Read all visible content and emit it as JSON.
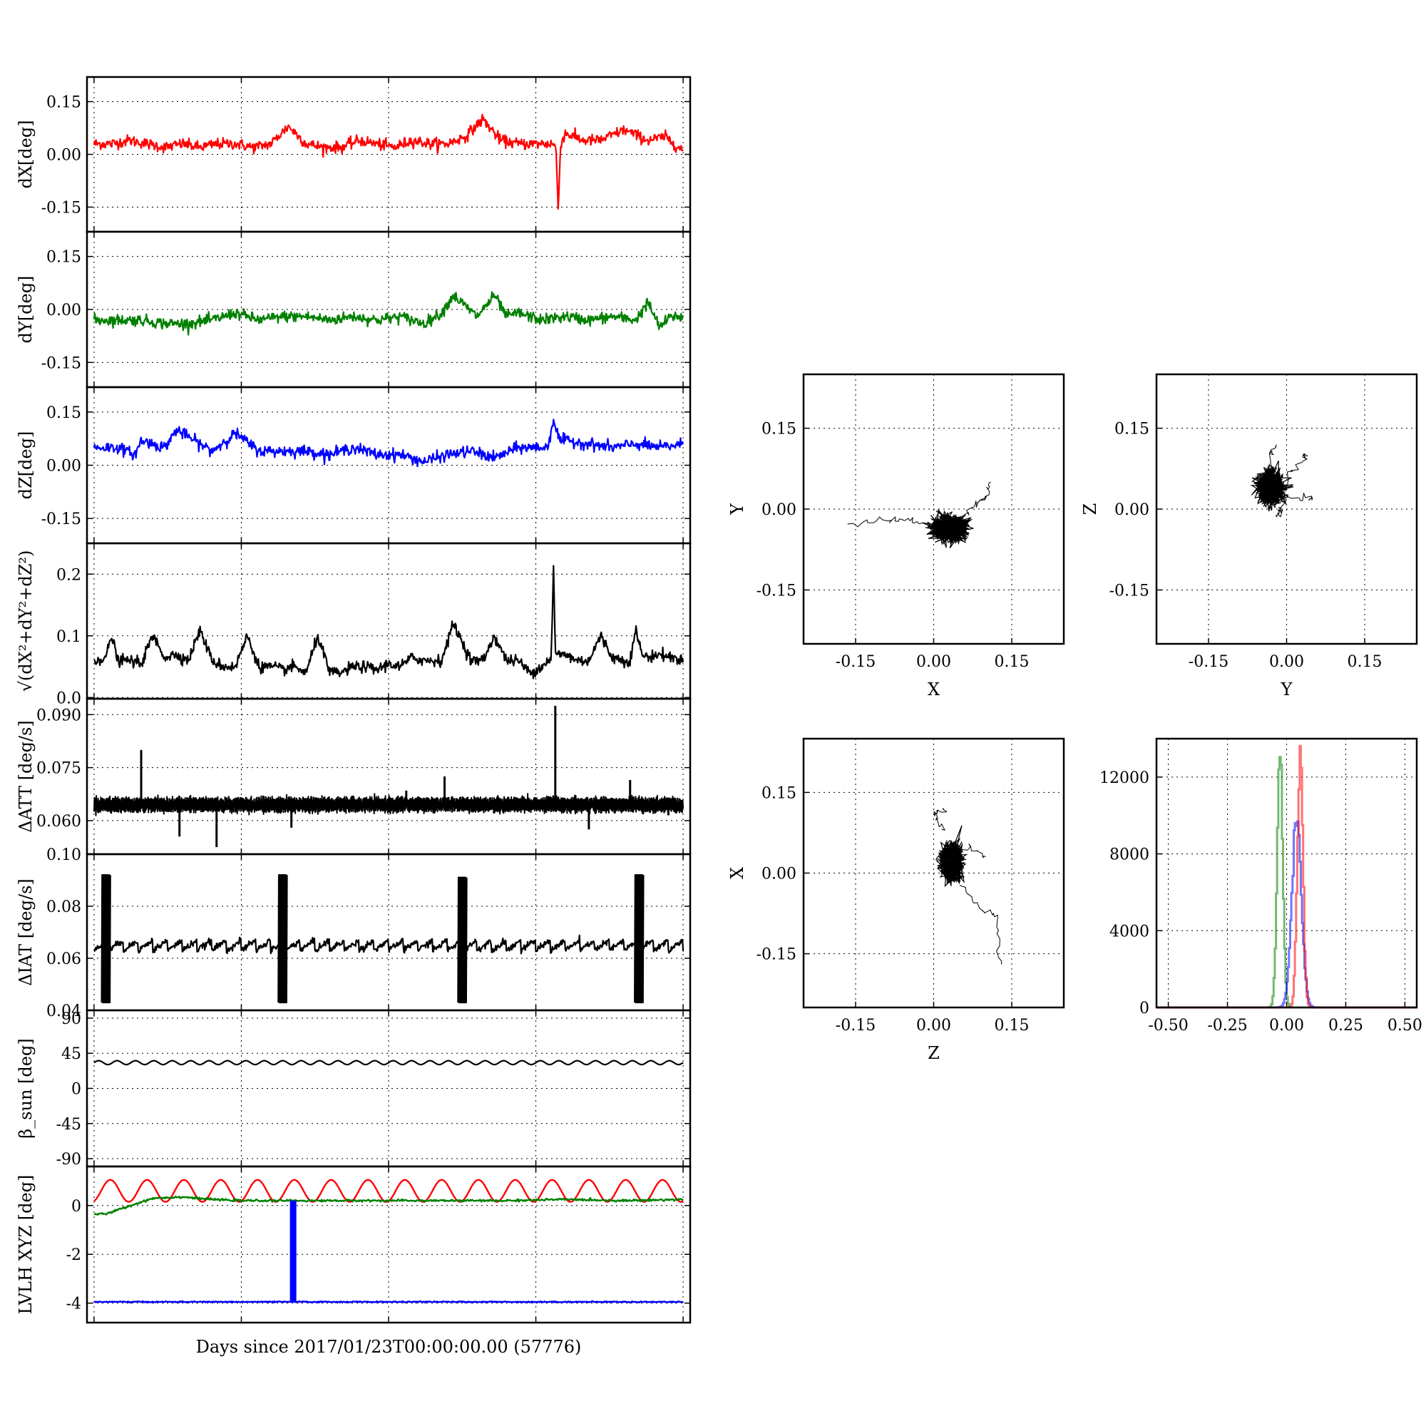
{
  "colors": {
    "red": "#ff0000",
    "green": "#008000",
    "blue": "#0000ff",
    "black": "#000000"
  },
  "xlabel": "Days since 2017/01/23T00:00:00.00 (57776)",
  "chart_data": [
    {
      "type": "line",
      "panel": "dX",
      "ylabel": "dX[deg]",
      "ylim": [
        -0.22,
        0.22
      ],
      "yticks": [
        "0.15",
        "0.00",
        "-0.15"
      ],
      "ytick_values": [
        0.15,
        0.0,
        -0.15
      ],
      "series": [
        {
          "color": "red",
          "x": [
            0,
            3,
            6,
            9,
            12,
            15,
            18,
            21,
            24,
            27,
            30,
            33,
            36,
            39,
            42,
            45,
            48,
            51,
            54,
            57,
            60,
            63,
            66,
            69,
            72,
            75,
            78,
            78.4,
            78.8,
            79.2,
            80,
            83,
            86,
            90,
            94,
            97,
            100
          ],
          "values": [
            0.03,
            0.03,
            0.04,
            0.03,
            0.02,
            0.03,
            0.02,
            0.03,
            0.03,
            0.02,
            0.03,
            0.08,
            0.03,
            0.02,
            0.02,
            0.04,
            0.03,
            0.02,
            0.04,
            0.03,
            0.03,
            0.05,
            0.1,
            0.04,
            0.03,
            0.03,
            0.03,
            0.02,
            -0.16,
            0.03,
            0.06,
            0.04,
            0.04,
            0.07,
            0.04,
            0.05,
            0.01
          ]
        }
      ]
    },
    {
      "type": "line",
      "panel": "dY",
      "ylabel": "dY[deg]",
      "ylim": [
        -0.22,
        0.22
      ],
      "yticks": [
        "0.15",
        "0.00",
        "-0.15"
      ],
      "ytick_values": [
        0.15,
        0.0,
        -0.15
      ],
      "series": [
        {
          "color": "green",
          "x": [
            0,
            4,
            8,
            12,
            16,
            20,
            24,
            28,
            32,
            36,
            40,
            44,
            48,
            52,
            56,
            59,
            61,
            65,
            68,
            70,
            72,
            76,
            80,
            84,
            88,
            92,
            94,
            96,
            98,
            100
          ],
          "values": [
            -0.03,
            -0.03,
            -0.03,
            -0.04,
            -0.04,
            -0.03,
            -0.01,
            -0.03,
            -0.02,
            -0.02,
            -0.03,
            -0.02,
            -0.03,
            -0.02,
            -0.04,
            -0.01,
            0.04,
            -0.02,
            0.04,
            -0.02,
            -0.01,
            -0.03,
            -0.02,
            -0.03,
            -0.02,
            -0.03,
            0.02,
            -0.05,
            -0.02,
            -0.02
          ]
        }
      ]
    },
    {
      "type": "line",
      "panel": "dZ",
      "ylabel": "dZ[deg]",
      "ylim": [
        -0.22,
        0.22
      ],
      "yticks": [
        "0.15",
        "0.00",
        "-0.15"
      ],
      "ytick_values": [
        0.15,
        0.0,
        -0.15
      ],
      "series": [
        {
          "color": "blue",
          "x": [
            0,
            4,
            7,
            8,
            12,
            14,
            18,
            20,
            24,
            28,
            32,
            36,
            40,
            44,
            48,
            52,
            56,
            60,
            64,
            68,
            72,
            76,
            77,
            78,
            79,
            80,
            84,
            88,
            92,
            96,
            100
          ],
          "values": [
            0.05,
            0.05,
            0.03,
            0.07,
            0.05,
            0.1,
            0.06,
            0.04,
            0.09,
            0.04,
            0.04,
            0.04,
            0.03,
            0.05,
            0.03,
            0.03,
            0.01,
            0.03,
            0.04,
            0.02,
            0.05,
            0.05,
            0.05,
            0.13,
            0.07,
            0.07,
            0.06,
            0.05,
            0.06,
            0.05,
            0.06
          ]
        }
      ]
    },
    {
      "type": "line",
      "panel": "norm",
      "ylabel": "√(dX²+dY²+dZ²)",
      "ylim": [
        -0.002,
        0.25
      ],
      "yticks": [
        "0.2",
        "0.1",
        "0.0"
      ],
      "ytick_values": [
        0.2,
        0.1,
        0.0
      ],
      "series": [
        {
          "color": "black",
          "x": [
            0,
            2,
            3,
            4,
            6,
            8,
            10,
            12,
            14,
            16,
            18,
            20,
            22,
            24,
            26,
            28,
            30,
            32,
            34,
            36,
            38,
            40,
            42,
            44,
            46,
            48,
            50,
            52,
            54,
            56,
            58,
            59,
            61,
            64,
            66,
            68,
            70,
            72,
            74,
            76,
            77,
            77.6,
            78,
            78.3,
            80,
            82,
            84,
            86,
            88,
            90,
            91,
            92,
            93,
            94,
            96,
            98,
            100
          ],
          "values": [
            0.06,
            0.065,
            0.1,
            0.06,
            0.06,
            0.055,
            0.1,
            0.065,
            0.07,
            0.06,
            0.11,
            0.06,
            0.05,
            0.05,
            0.1,
            0.05,
            0.05,
            0.045,
            0.05,
            0.04,
            0.1,
            0.04,
            0.04,
            0.05,
            0.05,
            0.045,
            0.055,
            0.05,
            0.065,
            0.06,
            0.06,
            0.06,
            0.12,
            0.06,
            0.06,
            0.1,
            0.06,
            0.06,
            0.04,
            0.05,
            0.06,
            0.06,
            0.215,
            0.07,
            0.07,
            0.06,
            0.06,
            0.1,
            0.065,
            0.06,
            0.06,
            0.11,
            0.07,
            0.065,
            0.07,
            0.065,
            0.06
          ]
        }
      ]
    },
    {
      "type": "line",
      "panel": "dATT",
      "ylabel": "ΔATT [deg/s]",
      "ylim": [
        0.0505,
        0.0945
      ],
      "yticks": [
        "0.090",
        "0.075",
        "0.060"
      ],
      "ytick_values": [
        0.09,
        0.075,
        0.06
      ],
      "baseline": 0.0645,
      "spikes": [
        {
          "x": 8,
          "y": 0.08
        },
        {
          "x": 14.5,
          "y": 0.0555
        },
        {
          "x": 20.8,
          "y": 0.0525
        },
        {
          "x": 33.5,
          "y": 0.058
        },
        {
          "x": 53,
          "y": 0.0685
        },
        {
          "x": 59.5,
          "y": 0.0725
        },
        {
          "x": 78.3,
          "y": 0.0925
        },
        {
          "x": 84,
          "y": 0.0575
        },
        {
          "x": 91,
          "y": 0.0715
        },
        {
          "x": 97.5,
          "y": 0.0615
        }
      ]
    },
    {
      "type": "line",
      "panel": "dIAT",
      "ylabel": "ΔIAT [deg/s]",
      "ylim": [
        0.04,
        0.1
      ],
      "yticks": [
        "0.10",
        "0.08",
        "0.06",
        "0.04"
      ],
      "ytick_values": [
        0.1,
        0.08,
        0.06,
        0.04
      ],
      "sawtooth": {
        "low": 0.063,
        "high": 0.067,
        "period": 2.5
      },
      "bursts": [
        {
          "x": 2,
          "low": 0.043,
          "high": 0.092
        },
        {
          "x": 32,
          "low": 0.043,
          "high": 0.092
        },
        {
          "x": 62.5,
          "low": 0.043,
          "high": 0.091
        },
        {
          "x": 92.5,
          "low": 0.043,
          "high": 0.092
        }
      ]
    },
    {
      "type": "line",
      "panel": "beta",
      "ylabel": "β_sun [deg]",
      "ylim": [
        -100,
        100
      ],
      "yticks": [
        "90",
        "45",
        "0",
        "-45",
        "-90"
      ],
      "ytick_values": [
        90,
        45,
        0,
        -45,
        -90
      ],
      "series": [
        {
          "color": "black",
          "mean": 33,
          "amplitude": 2.5,
          "cycles": 32
        }
      ]
    },
    {
      "type": "line",
      "panel": "lvlh",
      "ylabel": "LVLH XYZ [deg]",
      "ylim": [
        -4.8,
        1.6
      ],
      "yticks": [
        "0",
        "-2",
        "-4"
      ],
      "ytick_values": [
        0,
        -2,
        -4
      ],
      "series": [
        {
          "color": "red",
          "mean": 0.6,
          "amplitude": 0.45,
          "cycles": 16
        },
        {
          "color": "green",
          "x": [
            0,
            2,
            5,
            10,
            15,
            20,
            25,
            30,
            40,
            50,
            60,
            70,
            80,
            90,
            100
          ],
          "values": [
            -0.35,
            -0.35,
            -0.1,
            0.3,
            0.35,
            0.25,
            0.2,
            0.2,
            0.2,
            0.2,
            0.2,
            0.2,
            0.25,
            0.2,
            0.25
          ]
        },
        {
          "color": "blue",
          "mean": -3.95
        }
      ],
      "bar": {
        "color": "blue",
        "x": 33.8,
        "from": 0.2,
        "to": -3.95
      }
    },
    {
      "type": "scatter",
      "panel": "XY",
      "xlabel": "X",
      "ylabel": "Y",
      "xlim": [
        -0.25,
        0.25
      ],
      "ylim": [
        -0.25,
        0.25
      ],
      "ticks": [
        "-0.15",
        "0.00",
        "0.15"
      ],
      "tick_values": [
        -0.15,
        0.0,
        0.15
      ],
      "cloud": {
        "cx": 0.03,
        "cy": -0.035,
        "sx": 0.017,
        "sy": 0.011,
        "n": 900
      },
      "trails": [
        [
          [
            0.05,
            -0.02
          ],
          [
            0.08,
            0.01
          ],
          [
            0.1,
            0.02
          ],
          [
            0.11,
            0.05
          ]
        ],
        [
          [
            -0.16,
            -0.03
          ],
          [
            -0.09,
            -0.02
          ],
          [
            -0.05,
            -0.02
          ],
          [
            0.0,
            -0.03
          ]
        ]
      ]
    },
    {
      "type": "scatter",
      "panel": "YZ",
      "xlabel": "Y",
      "ylabel": "Z",
      "xlim": [
        -0.25,
        0.25
      ],
      "ylim": [
        -0.25,
        0.25
      ],
      "ticks": [
        "-0.15",
        "0.00",
        "0.15"
      ],
      "tick_values": [
        -0.15,
        0.0,
        0.15
      ],
      "cloud": {
        "cx": -0.03,
        "cy": 0.04,
        "sx": 0.012,
        "sy": 0.015,
        "n": 900
      },
      "trails": [
        [
          [
            -0.02,
            0.05
          ],
          [
            -0.03,
            0.1
          ],
          [
            -0.02,
            0.12
          ]
        ],
        [
          [
            -0.01,
            0.04
          ],
          [
            0.03,
            0.09
          ],
          [
            0.04,
            0.1
          ]
        ],
        [
          [
            -0.01,
            0.02
          ],
          [
            0.04,
            0.02
          ],
          [
            0.05,
            0.02
          ]
        ],
        [
          [
            -0.01,
            0.02
          ],
          [
            -0.01,
            0.0
          ],
          [
            -0.02,
            -0.01
          ]
        ]
      ]
    },
    {
      "type": "scatter",
      "panel": "ZX",
      "xlabel": "Z",
      "ylabel": "X",
      "xlim": [
        -0.25,
        0.25
      ],
      "ylim": [
        -0.25,
        0.25
      ],
      "ticks": [
        "-0.15",
        "0.00",
        "0.15"
      ],
      "tick_values": [
        -0.15,
        0.0,
        0.15
      ],
      "cloud": {
        "cx": 0.035,
        "cy": 0.02,
        "sx": 0.01,
        "sy": 0.016,
        "n": 900
      },
      "trails": [
        [
          [
            0.04,
            0.03
          ],
          [
            0.07,
            0.05
          ],
          [
            0.1,
            0.03
          ]
        ],
        [
          [
            0.02,
            0.08
          ],
          [
            0.0,
            0.11
          ],
          [
            0.02,
            0.12
          ]
        ],
        [
          [
            0.05,
            -0.02
          ],
          [
            0.09,
            -0.07
          ],
          [
            0.12,
            -0.08
          ],
          [
            0.13,
            -0.17
          ]
        ]
      ]
    },
    {
      "type": "area",
      "panel": "hist",
      "xlim": [
        -0.55,
        0.55
      ],
      "ylim": [
        0,
        14000
      ],
      "xticks": [
        "-0.50",
        "-0.25",
        "0.00",
        "0.25",
        "0.50"
      ],
      "xtick_values": [
        -0.5,
        -0.25,
        0.0,
        0.25,
        0.5
      ],
      "yticks": [
        "12000",
        "8000",
        "4000",
        "0"
      ],
      "ytick_values": [
        12000,
        8000,
        4000,
        0
      ],
      "series": [
        {
          "color": "green",
          "center": -0.03,
          "sigma": 0.012,
          "peak": 12800
        },
        {
          "color": "blue",
          "center": 0.04,
          "sigma": 0.02,
          "peak": 10000
        },
        {
          "color": "red",
          "center": 0.055,
          "sigma": 0.012,
          "peak": 12900
        }
      ]
    }
  ]
}
